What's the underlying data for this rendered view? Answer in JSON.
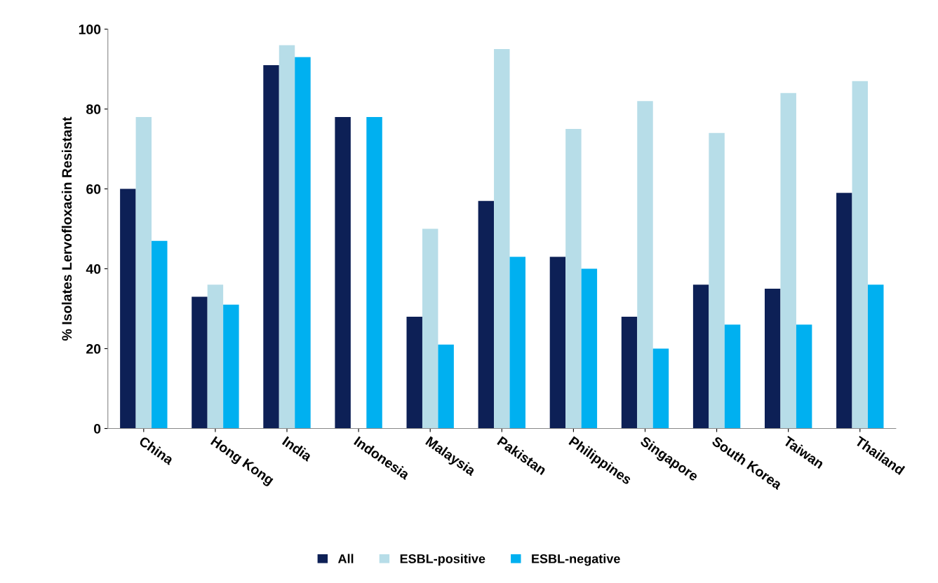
{
  "chart_data": {
    "type": "bar",
    "ylabel": "% Isolates Lervofloxacin Resistant",
    "categories": [
      "China",
      "Hong Kong",
      "India",
      "Indonesia",
      "Malaysia",
      "Pakistan",
      "Philippines",
      "Singapore",
      "South Korea",
      "Taiwan",
      "Thailand"
    ],
    "series": [
      {
        "name": "All",
        "color": "#0d2056",
        "values": [
          60,
          33,
          91,
          78,
          28,
          57,
          43,
          28,
          36,
          35,
          59
        ]
      },
      {
        "name": "ESBL-positive",
        "color": "#b7dde8",
        "values": [
          78,
          36,
          96,
          0,
          50,
          95,
          75,
          82,
          74,
          84,
          87
        ]
      },
      {
        "name": "ESBL-negative",
        "color": "#00b0f0",
        "values": [
          47,
          31,
          93,
          78,
          21,
          43,
          40,
          20,
          26,
          26,
          36
        ]
      }
    ],
    "ylim": [
      0,
      100
    ],
    "yticks": [
      0,
      20,
      40,
      60,
      80,
      100
    ],
    "grid": false,
    "legend": "bottom"
  }
}
